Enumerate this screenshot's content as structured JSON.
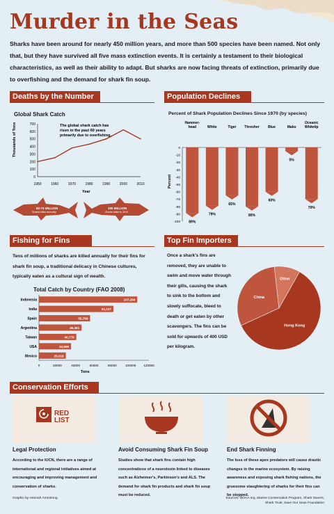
{
  "title": "Murder in the Seas",
  "intro": "Sharks have been around for nearly 450 million years, and more than 500 species have been named.  Not only that, but they have survived all five mass extinction events.  It is certainly a testament to their biological characteristics, as well as their ability to adapt. But sharks are now facing threats of extinction, primarily due to overfishing and the demand for shark fin soup.",
  "deaths": {
    "header": "Deaths by the Number",
    "chart_title": "Global Shark Catch",
    "annotation": [
      "The global shark catch has",
      "risen in the past 60 years",
      "primarily due to overfishing."
    ],
    "shark_left": [
      "60-73 MILLION",
      "Sharks killed annually"
    ],
    "shark_right": [
      "100 MILLION",
      "Sharks killed in 2010"
    ]
  },
  "population": {
    "header": "Population Declines",
    "chart_title": "Percent of Shark Population Declines Since 1970 (by species)"
  },
  "fishing": {
    "header": "Fishing for Fins",
    "paragraph": "Tens of millions of sharks are killed annually for their fins for shark fin soup, a traditional delicacy in Chinese cultures, typically eaten as a cultural sign of wealth.",
    "chart_title": "Total Catch by Country (FAO 2008)"
  },
  "importers": {
    "header": "Top Fin Importers",
    "paragraph": "Once a shark's fins are removed, they are unable to swim and move water through their gills, causing the shark to sink to the bottom and slowly suffocate, bleed to death or get eaten by other scavengers. The fins can be sold for upwards of 400 USD per kilogram."
  },
  "conservation": {
    "header": "Conservation Efforts",
    "redlist_text": [
      "RED",
      "LIST"
    ],
    "cards": [
      {
        "title": "Legal Protection",
        "text": "According to the IUCN, there are a range of international and regional initiatives aimed at encouraging and improving management and conservation of sharks."
      },
      {
        "title": "Avoid Consuming Shark Fin Soup",
        "text": "Studies show that shark fins contain high concentrations of a neurotoxin linked to diseases such as Alzheimer's, Parkinson's and ALS. The demand for shark fin products and shark fin soup must be reduced."
      },
      {
        "title": "End Shark Finning",
        "text": "The loss of these apex predators will cause drastic changes in the marine ecosystem. By raising awareness and exposing shark fishing nations, the gruesome slaughtering of sharks for their fins can be stopped."
      }
    ]
  },
  "footer": {
    "credit": "Graphic by Hannah Armstrong",
    "sources": [
      "Sources: NOAA.org, Marine Conservation Program, Shark Savers,",
      "Shark Trust, Save Our Seas Foundation"
    ]
  },
  "colors": {
    "accent": "#a8371f",
    "bar": "#c0553e",
    "bg": "#e3eef5"
  },
  "chart_data": [
    {
      "type": "line",
      "title": "Global Shark Catch",
      "xlabel": "Year",
      "ylabel": "Thousands of Tons",
      "x": [
        1950,
        1960,
        1970,
        1980,
        1990,
        2000,
        2010
      ],
      "values": [
        200,
        250,
        380,
        430,
        500,
        620,
        500
      ],
      "ylim": [
        0,
        700
      ],
      "y_ticks": [
        0,
        100,
        200,
        300,
        400,
        500,
        600,
        700
      ]
    },
    {
      "type": "bar",
      "title": "Percent of Shark Population Declines Since 1970 (by species)",
      "ylabel": "Percent",
      "categories": [
        "Hammer-head",
        "White",
        "Tiger",
        "Thresher",
        "Blue",
        "Mako",
        "Oceanic Whitetip"
      ],
      "values": [
        -89,
        -79,
        -65,
        -80,
        -60,
        -5,
        -70
      ],
      "labels": [
        "89%",
        "79%",
        "65%",
        "80%",
        "60%",
        "5%",
        "70%"
      ],
      "ylim": [
        -100,
        0
      ],
      "y_ticks": [
        0,
        -10,
        -20,
        -30,
        -40,
        -50,
        -60,
        -70,
        -80,
        -90,
        -100
      ]
    },
    {
      "type": "bar",
      "title": "Total Catch by Country (FAO 2008)",
      "xlabel": "Tons",
      "categories": [
        "Indonesia",
        "India",
        "Spain",
        "Argentina",
        "Taiwan",
        "USA",
        "Mexico"
      ],
      "values": [
        107290,
        81237,
        55769,
        46461,
        40776,
        34986,
        29318
      ],
      "labels": [
        "107,290",
        "81,237",
        "55,769",
        "46,461",
        "40,776",
        "34,986",
        "29,318"
      ],
      "xlim": [
        0,
        120000
      ],
      "x_ticks": [
        0,
        20000,
        40000,
        60000,
        80000,
        100000,
        120000
      ]
    },
    {
      "type": "pie",
      "categories": [
        "Hong Kong",
        "China",
        "Other"
      ],
      "values": [
        60,
        30,
        10
      ],
      "colors": [
        "#a8371f",
        "#c0553e",
        "#d3765d"
      ]
    }
  ]
}
